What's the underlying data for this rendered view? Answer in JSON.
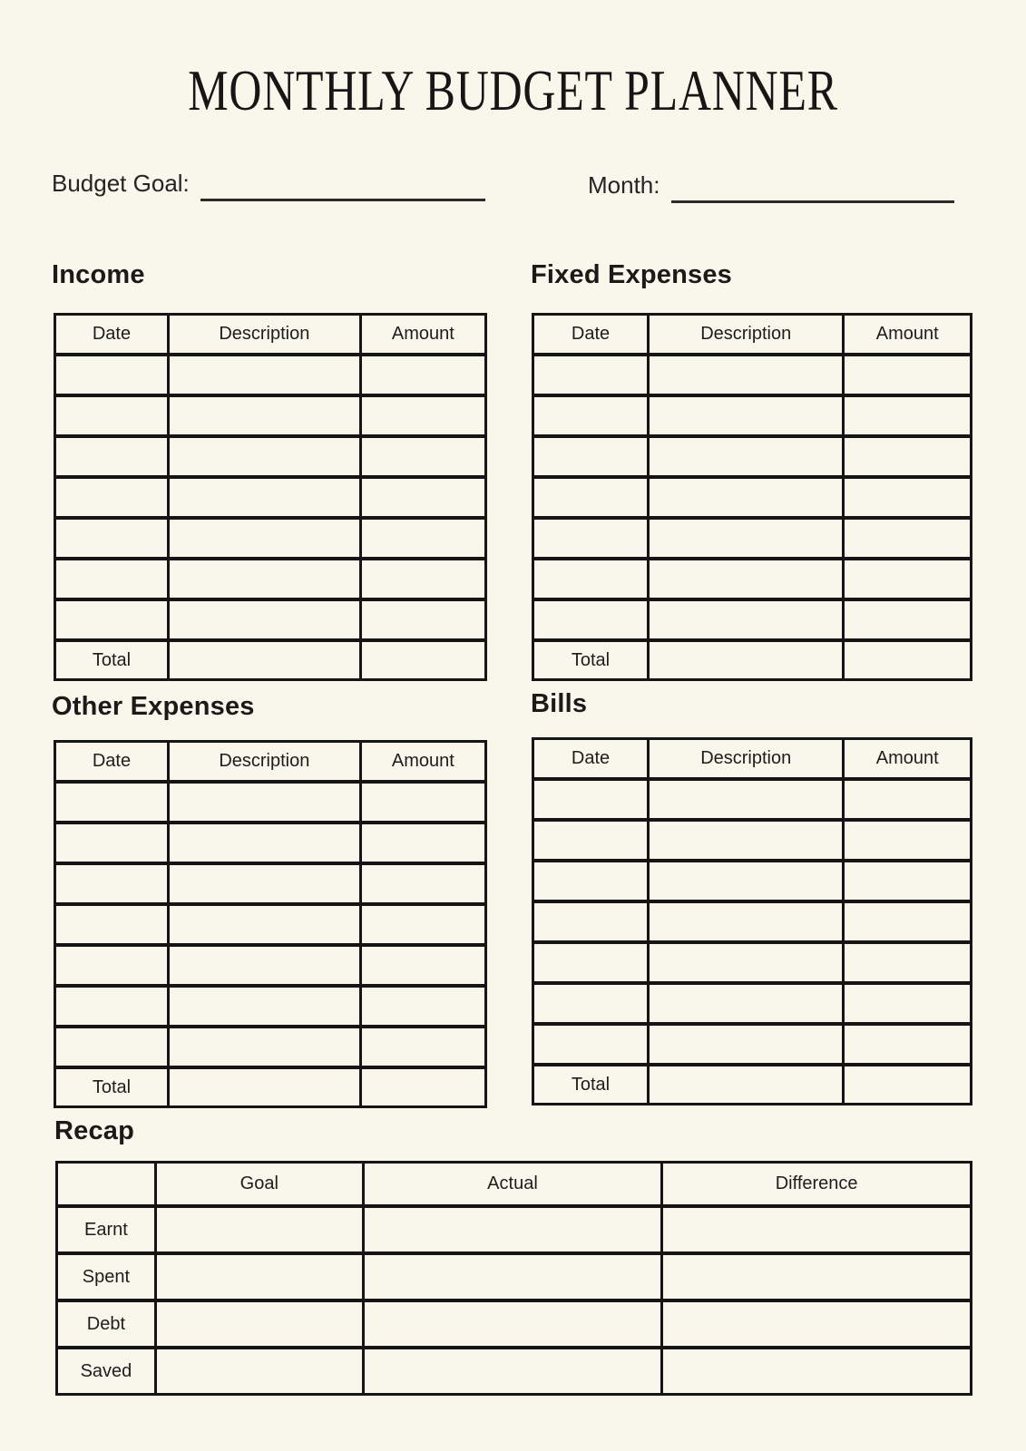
{
  "page": {
    "title": "MONTHLY BUDGET PLANNER",
    "background_color": "#F9F6EC",
    "border_color": "#151515",
    "text_color": "#1D1D1B"
  },
  "fields": {
    "budget_goal": {
      "label": "Budget Goal:",
      "value": ""
    },
    "month": {
      "label": "Month:",
      "value": ""
    }
  },
  "entry_tables": {
    "columns": [
      "Date",
      "Description",
      "Amount"
    ],
    "total_label": "Total",
    "empty_row_count": 7,
    "sections": [
      {
        "key": "income",
        "heading": "Income"
      },
      {
        "key": "fixed-expenses",
        "heading": "Fixed Expenses"
      },
      {
        "key": "other-expenses",
        "heading": "Other Expenses"
      },
      {
        "key": "bills",
        "heading": "Bills"
      }
    ]
  },
  "recap": {
    "heading": "Recap",
    "columns": [
      "Goal",
      "Actual",
      "Difference"
    ],
    "row_labels": [
      "Earnt",
      "Spent",
      "Debt",
      "Saved"
    ]
  }
}
